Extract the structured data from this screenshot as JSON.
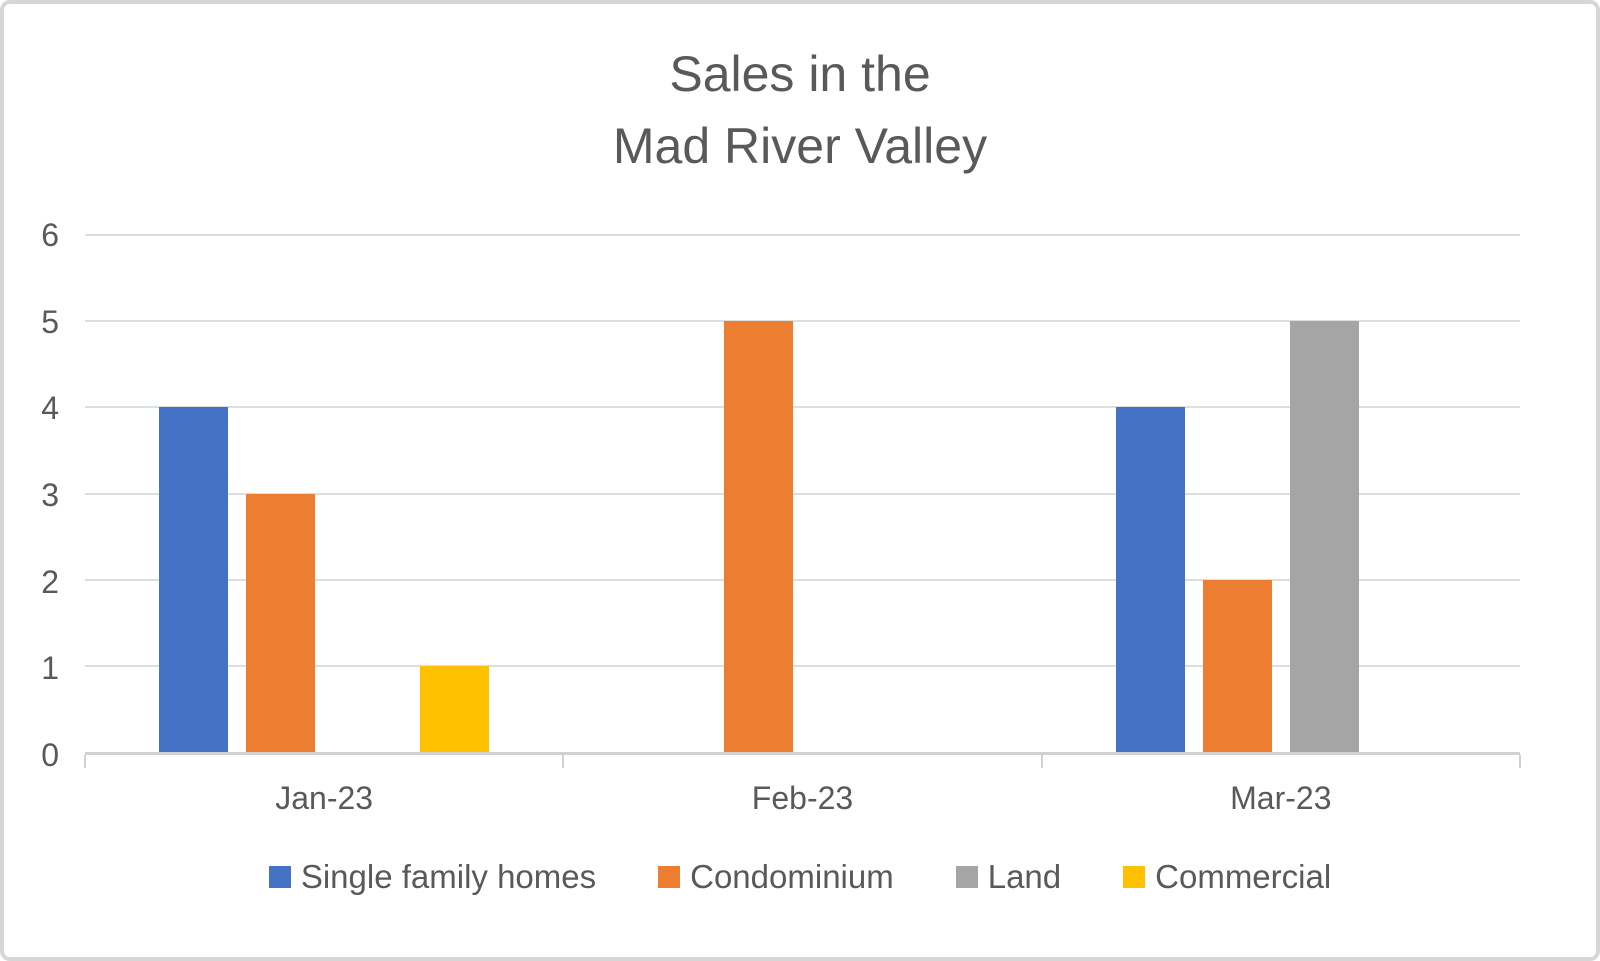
{
  "chart_data": {
    "type": "bar",
    "title": "Sales in the Mad River Valley",
    "title_lines": [
      "Sales in the",
      "Mad River Valley"
    ],
    "categories": [
      "Jan-23",
      "Feb-23",
      "Mar-23"
    ],
    "series": [
      {
        "name": "Single family homes",
        "color": "#4472C4",
        "values": [
          4,
          0,
          4
        ]
      },
      {
        "name": "Condominium",
        "color": "#ED7D31",
        "values": [
          3,
          5,
          2
        ]
      },
      {
        "name": "Land",
        "color": "#A5A5A5",
        "values": [
          0,
          0,
          5
        ]
      },
      {
        "name": "Commercial",
        "color": "#FFC000",
        "values": [
          1,
          0,
          0
        ]
      }
    ],
    "xlabel": "",
    "ylabel": "",
    "ylim": [
      0,
      6
    ],
    "yticks": [
      0,
      1,
      2,
      3,
      4,
      5,
      6
    ],
    "grid": true,
    "legend_position": "bottom",
    "styles": {
      "text_color": "#595959",
      "gridline_color": "#dedede",
      "axis_color": "#d1d1d1",
      "border_color": "#d6d6d6",
      "background": "#ffffff"
    }
  }
}
